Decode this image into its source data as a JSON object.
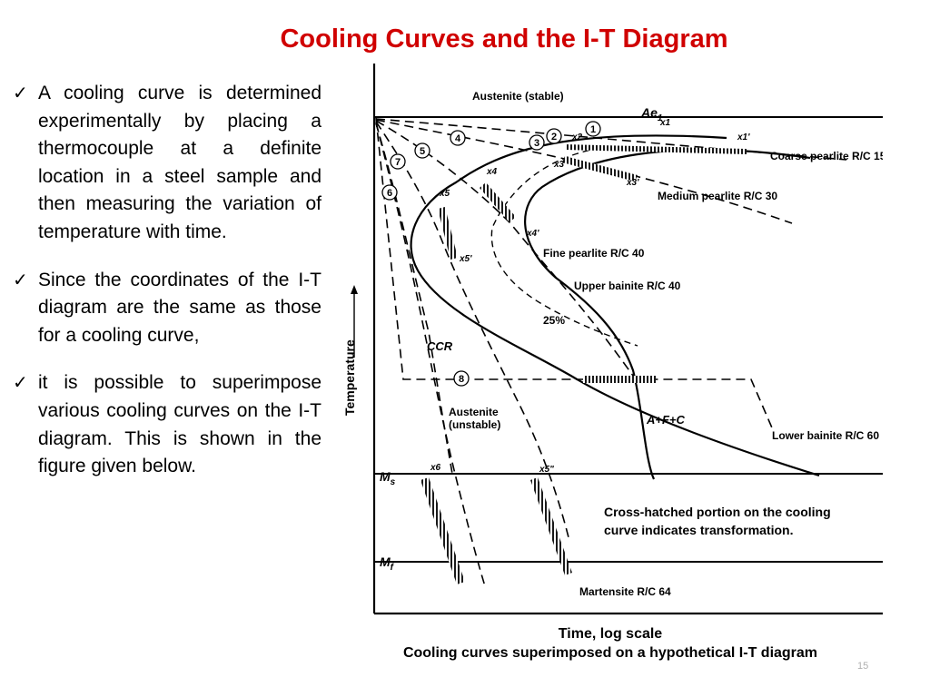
{
  "slide": {
    "title": "Cooling Curves and the I-T Diagram",
    "page_number": "15",
    "bullets": [
      "A cooling curve is determined experimentally by placing a thermocouple at a definite location in a steel sample and then measuring the variation of temperature with time.",
      "Since the coordinates of the I-T diagram are the same as those for a cooling curve,",
      "it is possible to superimpose various cooling curves on the I-T diagram. This is shown in the figure given below."
    ]
  },
  "diagram": {
    "y_axis_label": "Temperature",
    "x_axis_label": "Time, log scale",
    "caption": "Cooling curves superimposed on  a hypothetical I-T diagram",
    "region_labels": {
      "austenite_stable": "Austenite (stable)",
      "austenite_unstable_1": "Austenite",
      "austenite_unstable_2": "(unstable)",
      "ccr": "CCR",
      "transformation_products": "A+F+C",
      "percent_25": "25%"
    },
    "temperature_lines": {
      "ae1": "Ae",
      "ae1_sub": "1",
      "ms": "M",
      "ms_sub": "s",
      "mf": "M",
      "mf_sub": "f"
    },
    "product_labels": [
      "Coarse pearlite R/C 15",
      "Medium pearlite R/C 30",
      "Fine pearlite R/C 40",
      "Upper bainite R/C 40",
      "Lower bainite R/C 60",
      "Martensite R/C 64"
    ],
    "curve_numbers": [
      "1",
      "2",
      "3",
      "4",
      "5",
      "6",
      "7",
      "8"
    ],
    "point_labels": [
      "x1",
      "x1'",
      "x2",
      "x3",
      "x3'",
      "x4",
      "x4'",
      "x5",
      "x5'",
      "x5\"",
      "x6"
    ],
    "note_line1": "Cross-hatched portion on the cooling",
    "note_line2": "curve indicates transformation."
  }
}
